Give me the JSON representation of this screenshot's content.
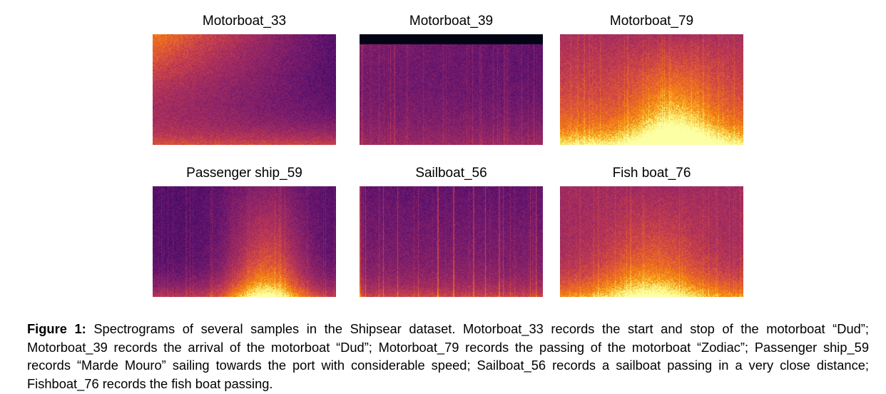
{
  "figure": {
    "panels": [
      {
        "title": "Motorboat_33",
        "colormap": "inferno"
      },
      {
        "title": "Motorboat_39",
        "colormap": "inferno"
      },
      {
        "title": "Motorboat_79",
        "colormap": "inferno"
      },
      {
        "title": "Passenger ship_59",
        "colormap": "inferno"
      },
      {
        "title": "Sailboat_56",
        "colormap": "inferno"
      },
      {
        "title": "Fish boat_76",
        "colormap": "inferno"
      }
    ],
    "caption": {
      "label": "Figure 1:",
      "text": "Spectrograms of several samples in the Shipsear dataset. Motorboat_33 records the start and stop of the motorboat “Dud”; Motorboat_39 records the arrival of the motorboat “Dud”; Motorboat_79 records the passing of the motorboat “Zodiac”; Passenger ship_59 records “Marde Mouro” sailing towards the port with considerable speed; Sailboat_56 records a sailboat passing in a very close distance; Fishboat_76 records the fish boat passing."
    }
  }
}
